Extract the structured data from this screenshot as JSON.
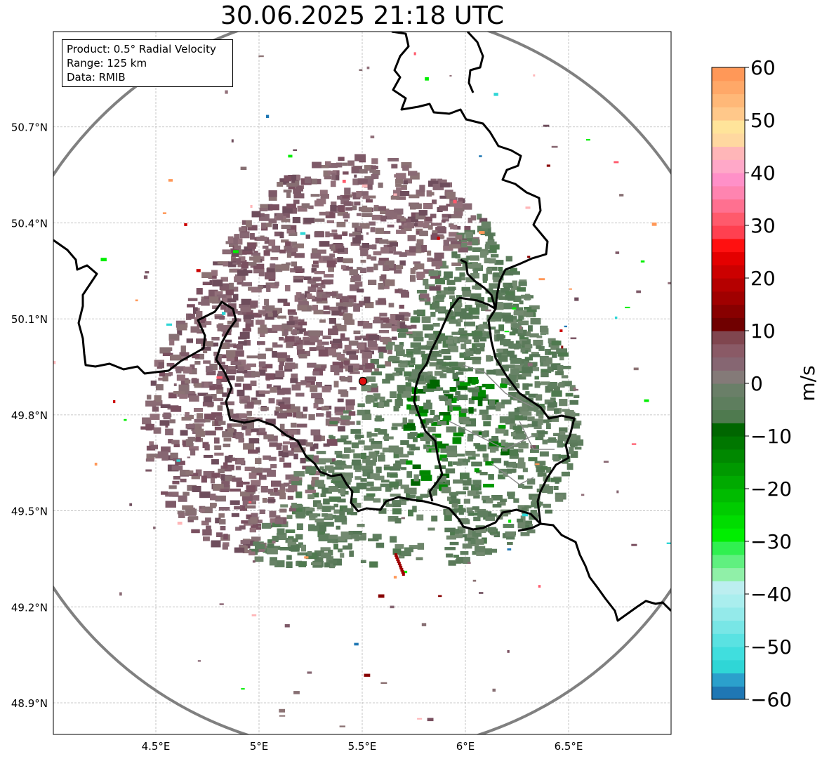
{
  "title": "30.06.2025 21:18 UTC",
  "info_box": {
    "line1": "Product: 0.5° Radial Velocity",
    "line2": "Range: 125 km",
    "line3": "Data: RMIB"
  },
  "map": {
    "lon_range": [
      4.0,
      7.0
    ],
    "lat_range": [
      48.8,
      50.95
    ],
    "lon_ticks": [
      {
        "value": 4.5,
        "label": "4.5°E"
      },
      {
        "value": 5.0,
        "label": "5°E"
      },
      {
        "value": 5.5,
        "label": "5.5°E"
      },
      {
        "value": 6.0,
        "label": "6°E"
      },
      {
        "value": 6.5,
        "label": "6.5°E"
      }
    ],
    "lat_ticks": [
      {
        "value": 48.9,
        "label": "48.9°N"
      },
      {
        "value": 49.2,
        "label": "49.2°N"
      },
      {
        "value": 49.5,
        "label": "49.5°N"
      },
      {
        "value": 49.8,
        "label": "49.8°N"
      },
      {
        "value": 50.1,
        "label": "50.1°N"
      },
      {
        "value": 50.4,
        "label": "50.4°N"
      },
      {
        "value": 50.7,
        "label": "50.7°N"
      }
    ],
    "grid": true,
    "radar_site": {
      "lon": 5.505,
      "lat": 49.914
    },
    "range_km": 125
  },
  "colorbar": {
    "label": "m/s",
    "range": [
      -60,
      60
    ],
    "tick_values": [
      -60,
      -50,
      -40,
      -30,
      -20,
      -10,
      0,
      10,
      20,
      30,
      40,
      50,
      60
    ],
    "tick_labels": [
      "−60",
      "−50",
      "−40",
      "−30",
      "−20",
      "−10",
      "0",
      "10",
      "20",
      "30",
      "40",
      "50",
      "60"
    ],
    "colors": [
      "#1f77b4",
      "#2ba0cc",
      "#2fd6d6",
      "#40dede",
      "#5ae2e2",
      "#78e6e6",
      "#94eaea",
      "#aaeeee",
      "#bceef0",
      "#90f0a8",
      "#60f080",
      "#30f050",
      "#00ee00",
      "#00dd00",
      "#00cc00",
      "#00bb00",
      "#00aa00",
      "#009900",
      "#008800",
      "#007700",
      "#006600",
      "#4f7a4f",
      "#5e7e5e",
      "#6a7f68",
      "#847a78",
      "#866672",
      "#8a5a66",
      "#80464f",
      "#700000",
      "#880000",
      "#a00000",
      "#b50000",
      "#cc0000",
      "#e40000",
      "#ff1010",
      "#ff4050",
      "#ff5a6c",
      "#ff7090",
      "#ff84b0",
      "#ff90c8",
      "#ffa8c8",
      "#ffb6b8",
      "#ffd8a0",
      "#ffe49a",
      "#ffc88a",
      "#ffb878",
      "#ffa868",
      "#ff9858"
    ]
  }
}
